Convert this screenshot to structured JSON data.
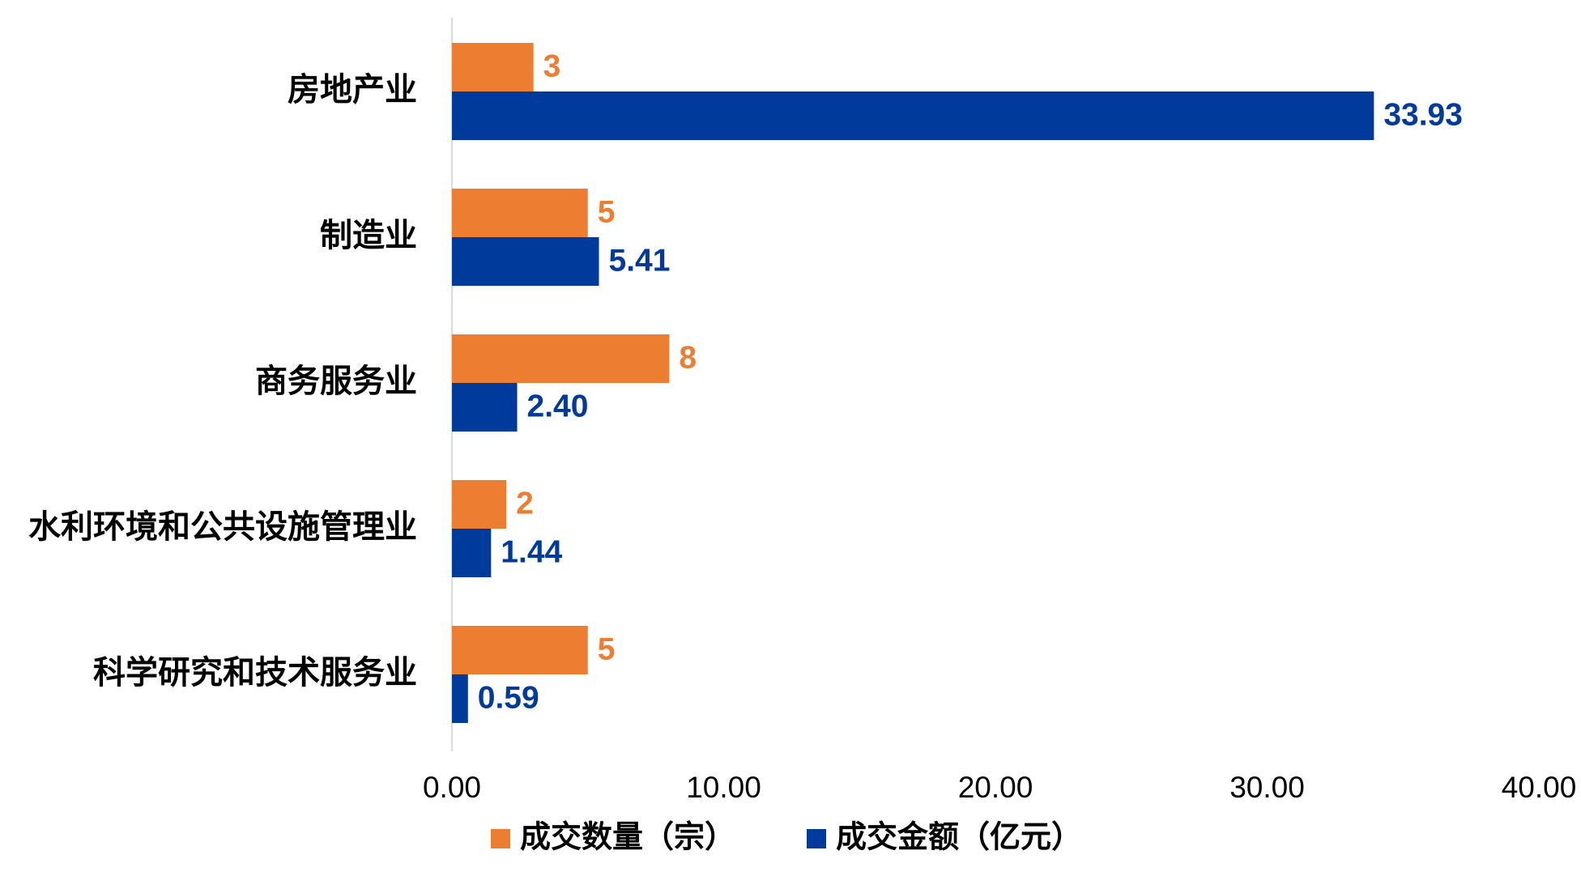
{
  "chart_data": {
    "type": "bar",
    "orientation": "horizontal",
    "categories": [
      "房地产业",
      "制造业",
      "商务服务业",
      "水利环境和公共设施管理业",
      "科学研究和技术服务业"
    ],
    "series": [
      {
        "name": "成交数量（宗）",
        "color": "#ED7D31",
        "values": [
          3,
          5,
          8,
          2,
          5
        ],
        "labels": [
          "3",
          "5",
          "8",
          "2",
          "5"
        ]
      },
      {
        "name": "成交金额（亿元）",
        "color": "#003A9B",
        "values": [
          33.93,
          5.41,
          2.4,
          1.44,
          0.59
        ],
        "labels": [
          "33.93",
          "5.41",
          "2.40",
          "1.44",
          "0.59"
        ]
      }
    ],
    "xlim": [
      0,
      40
    ],
    "xticks": [
      "0.00",
      "10.00",
      "20.00",
      "30.00",
      "40.00"
    ],
    "title": "",
    "xlabel": "",
    "ylabel": "",
    "grid": false,
    "legend_position": "bottom"
  }
}
